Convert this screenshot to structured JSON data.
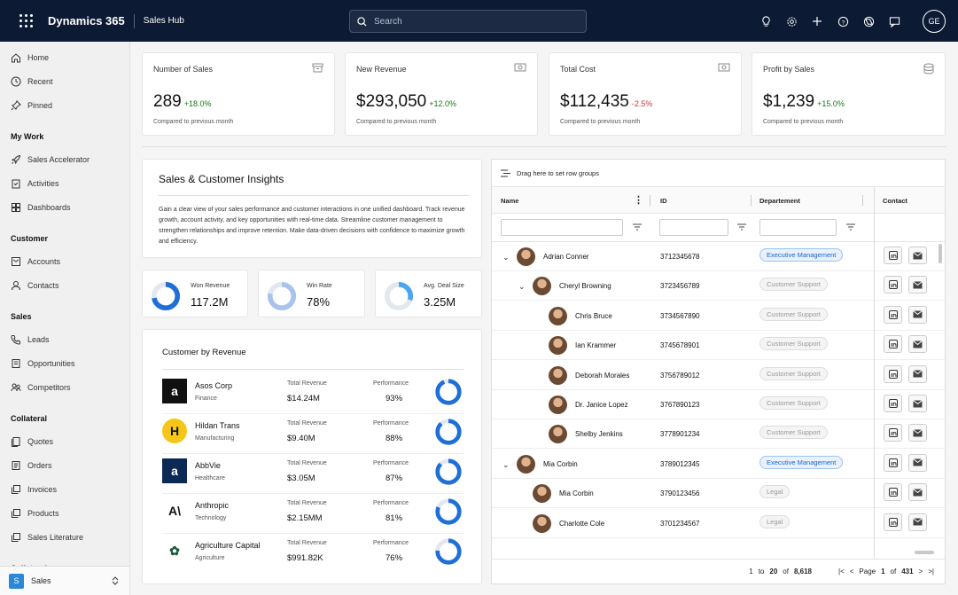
{
  "topbar": {
    "brand": "Dynamics 365",
    "hub": "Sales Hub",
    "search_placeholder": "Search",
    "avatar": "GE"
  },
  "sidebar": {
    "top": [
      "Home",
      "Recent",
      "Pinned"
    ],
    "groups": [
      {
        "title": "My Work",
        "items": [
          "Sales Accelerator",
          "Activities",
          "Dashboards"
        ]
      },
      {
        "title": "Customer",
        "items": [
          "Accounts",
          "Contacts"
        ]
      },
      {
        "title": "Sales",
        "items": [
          "Leads",
          "Opportunities",
          "Competitors"
        ]
      },
      {
        "title": "Collateral",
        "items": [
          "Quotes",
          "Orders",
          "Invoices",
          "Products",
          "Sales Literature"
        ]
      },
      {
        "title": "Collateral",
        "items": []
      }
    ],
    "area_badge": "S",
    "area_label": "Sales"
  },
  "kpis": [
    {
      "title": "Number of Sales",
      "value": "289",
      "delta": "+18.0%",
      "trend": "up",
      "sub": "Compared to previous month"
    },
    {
      "title": "New Revenue",
      "value": "$293,050",
      "delta": "+12.0%",
      "trend": "up",
      "sub": "Compared to previous month"
    },
    {
      "title": "Total Cost",
      "value": "$112,435",
      "delta": "-2.5%",
      "trend": "down",
      "sub": "Compared to previous month"
    },
    {
      "title": "Profit by Sales",
      "value": "$1,239",
      "delta": "+15.0%",
      "trend": "up",
      "sub": "Compared to previous month"
    }
  ],
  "insights": {
    "title": "Sales & Customer Insights",
    "body": "Gain a clear view of your sales performance and customer interactions in one unified dashboard. Track revenue growth, account activity, and key opportunities with real-time data. Streamline customer management to strengthen relationships and improve retention. Make data-driven decisions with confidence to maximize growth and efficiency."
  },
  "mini_metrics": [
    {
      "title": "Won Revenue",
      "value": "117.2M",
      "fill": 0.72,
      "color": "#1f6fd6"
    },
    {
      "title": "Win Rate",
      "value": "78%",
      "fill": 0.78,
      "color": "#a9c3ef"
    },
    {
      "title": "Avg. Deal Size",
      "value": "3.25M",
      "fill": 0.3,
      "color": "#4aa6f0"
    }
  ],
  "revenue": {
    "title": "Customer by Revenue",
    "revenue_label": "Total Revenue",
    "perf_label": "Performance",
    "rows": [
      {
        "name": "Asos Corp",
        "industry": "Finance",
        "revenue": "$14.24M",
        "performance": "93%",
        "pct": 0.93,
        "logo": "a",
        "logo_bg": "#111",
        "logo_fg": "#fff"
      },
      {
        "name": "Hildan Trans",
        "industry": "Manufacturing",
        "revenue": "$9.40M",
        "performance": "88%",
        "pct": 0.88,
        "logo": "H",
        "logo_bg": "#f5c518",
        "logo_fg": "#111"
      },
      {
        "name": "AbbVie",
        "industry": "Healthcare",
        "revenue": "$3.05M",
        "performance": "87%",
        "pct": 0.87,
        "logo": "a",
        "logo_bg": "#0a2a55",
        "logo_fg": "#fff"
      },
      {
        "name": "Anthropic",
        "industry": "Technology",
        "revenue": "$2.15MM",
        "performance": "81%",
        "pct": 0.81,
        "logo": "A\\",
        "logo_bg": "#fff",
        "logo_fg": "#111"
      },
      {
        "name": "Agriculture Capital",
        "industry": "Agriculture",
        "revenue": "$991.82K",
        "performance": "76%",
        "pct": 0.76,
        "logo": "✿",
        "logo_bg": "#fff",
        "logo_fg": "#1d5a3a"
      }
    ]
  },
  "grid": {
    "toolbar": "Drag here to set row groups",
    "columns": {
      "name": "Name",
      "id": "ID",
      "department": "Departement",
      "contact": "Contact"
    },
    "rows": [
      {
        "level": 0,
        "expander": true,
        "name": "Adrian Conner",
        "id": "3712345678",
        "dept": "Executive Management",
        "style": "exec"
      },
      {
        "level": 1,
        "expander": true,
        "name": "Cheryl Browning",
        "id": "3723456789",
        "dept": "Customer Support",
        "style": "gray"
      },
      {
        "level": 2,
        "expander": false,
        "name": "Chris Bruce",
        "id": "3734567890",
        "dept": "Customer Support",
        "style": "gray"
      },
      {
        "level": 2,
        "expander": false,
        "name": "Ian Krammer",
        "id": "3745678901",
        "dept": "Customer Support",
        "style": "gray"
      },
      {
        "level": 2,
        "expander": false,
        "name": "Deborah Morales",
        "id": "3756789012",
        "dept": "Customer Support",
        "style": "gray"
      },
      {
        "level": 2,
        "expander": false,
        "name": "Dr. Janice Lopez",
        "id": "3767890123",
        "dept": "Customer Support",
        "style": "gray"
      },
      {
        "level": 2,
        "expander": false,
        "name": "Shelby Jenkins",
        "id": "3778901234",
        "dept": "Customer Support",
        "style": "gray"
      },
      {
        "level": 0,
        "expander": true,
        "name": "Mia Corbin",
        "id": "3789012345",
        "dept": "Executive Management",
        "style": "exec"
      },
      {
        "level": 1,
        "expander": false,
        "name": "Mia Corbin",
        "id": "3790123456",
        "dept": "Legal",
        "style": "gray"
      },
      {
        "level": 1,
        "expander": false,
        "name": "Charlotte Cole",
        "id": "3701234567",
        "dept": "Legal",
        "style": "gray"
      }
    ],
    "footer": {
      "from": "1",
      "to_word": "to",
      "to": "20",
      "of_word": "of",
      "total": "8,618",
      "page_word": "Page",
      "page": "1",
      "pages": "431"
    }
  }
}
